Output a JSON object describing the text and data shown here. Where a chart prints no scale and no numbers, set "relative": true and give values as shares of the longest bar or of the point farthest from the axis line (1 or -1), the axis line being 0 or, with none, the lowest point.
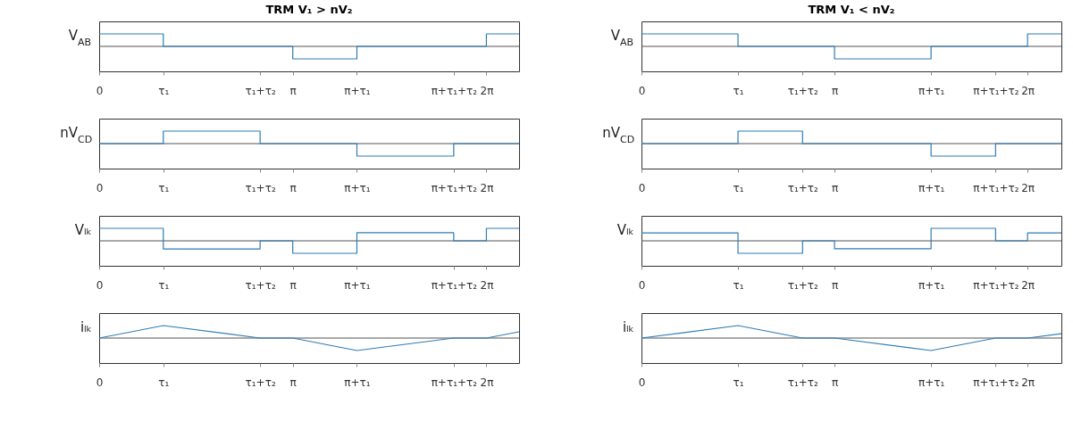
{
  "chart_data": [
    {
      "type": "step",
      "title": "TRM   V₁ > nV₂",
      "ylabel": "V$_{AB}$",
      "relative": true,
      "color": "#2f7db5",
      "grid": false,
      "xlim": [
        0,
        6.81
      ],
      "xticks": [
        0,
        {
          "value": 1.04,
          "label": "τ₁"
        },
        {
          "value": 2.61,
          "label": "τ₁+τ₂"
        },
        {
          "value": 3.14,
          "label": "π"
        },
        {
          "value": 4.18,
          "label": "π+τ₁"
        },
        {
          "value": 5.75,
          "label": "π+τ₁+τ₂"
        },
        {
          "value": 6.28,
          "label": "2π"
        }
      ],
      "x": [
        0,
        1.04,
        2.61,
        3.14,
        4.18,
        5.75,
        6.28,
        6.81
      ],
      "values": [
        1,
        0,
        0,
        -1,
        0,
        0,
        1,
        1
      ]
    },
    {
      "type": "step",
      "title": "TRM   V₁ < nV₂",
      "ylabel": "V$_{AB}$",
      "relative": true,
      "color": "#2f7db5",
      "grid": false,
      "xlim": [
        0,
        6.83
      ],
      "xticks": [
        0,
        {
          "value": 1.57,
          "label": "τ₁"
        },
        {
          "value": 2.62,
          "label": "τ₁+τ₂"
        },
        {
          "value": 3.14,
          "label": "π"
        },
        {
          "value": 4.71,
          "label": "π+τ₁"
        },
        {
          "value": 5.76,
          "label": "π+τ₁+τ₂"
        },
        {
          "value": 6.28,
          "label": "2π"
        }
      ],
      "x": [
        0,
        1.57,
        2.62,
        3.14,
        4.71,
        5.76,
        6.28,
        6.83
      ],
      "values": [
        1,
        0,
        0,
        -1,
        0,
        0,
        1,
        1
      ]
    },
    {
      "type": "step",
      "ylabel": "nV$_{CD}$",
      "relative": true,
      "color": "#2f7db5",
      "grid": false,
      "xlim": [
        0,
        6.81
      ],
      "xticks": [
        0,
        {
          "value": 1.04,
          "label": "τ₁"
        },
        {
          "value": 2.61,
          "label": "τ₁+τ₂"
        },
        {
          "value": 3.14,
          "label": "π"
        },
        {
          "value": 4.18,
          "label": "π+τ₁"
        },
        {
          "value": 5.75,
          "label": "π+τ₁+τ₂"
        },
        {
          "value": 6.28,
          "label": "2π"
        }
      ],
      "x": [
        0,
        1.04,
        2.61,
        3.14,
        4.18,
        5.75,
        6.28,
        6.81
      ],
      "values": [
        0,
        1,
        0,
        0,
        -1,
        0,
        0,
        0
      ]
    },
    {
      "type": "step",
      "ylabel": "nV$_{CD}$",
      "relative": true,
      "color": "#2f7db5",
      "grid": false,
      "xlim": [
        0,
        6.83
      ],
      "xticks": [
        0,
        {
          "value": 1.57,
          "label": "τ₁"
        },
        {
          "value": 2.62,
          "label": "τ₁+τ₂"
        },
        {
          "value": 3.14,
          "label": "π"
        },
        {
          "value": 4.71,
          "label": "π+τ₁"
        },
        {
          "value": 5.76,
          "label": "π+τ₁+τ₂"
        },
        {
          "value": 6.28,
          "label": "2π"
        }
      ],
      "x": [
        0,
        1.57,
        2.62,
        3.14,
        4.71,
        5.76,
        6.28,
        6.83
      ],
      "values": [
        0,
        1,
        0,
        0,
        -1,
        0,
        0,
        0
      ]
    },
    {
      "type": "step",
      "ylabel": "Vₗₖ",
      "relative": true,
      "color": "#2f7db5",
      "grid": false,
      "xlim": [
        0,
        6.81
      ],
      "xticks": [
        0,
        {
          "value": 1.04,
          "label": "τ₁"
        },
        {
          "value": 2.61,
          "label": "τ₁+τ₂"
        },
        {
          "value": 3.14,
          "label": "π"
        },
        {
          "value": 4.18,
          "label": "π+τ₁"
        },
        {
          "value": 5.75,
          "label": "π+τ₁+τ₂"
        },
        {
          "value": 6.28,
          "label": "2π"
        }
      ],
      "x": [
        0,
        1.04,
        2.61,
        3.14,
        4.18,
        5.75,
        6.28,
        6.81
      ],
      "values": [
        1,
        -0.65,
        0,
        -1,
        0.65,
        0,
        1,
        1
      ]
    },
    {
      "type": "step",
      "ylabel": "Vₗₖ",
      "relative": true,
      "color": "#2f7db5",
      "grid": false,
      "xlim": [
        0,
        6.83
      ],
      "xticks": [
        0,
        {
          "value": 1.57,
          "label": "τ₁"
        },
        {
          "value": 2.62,
          "label": "τ₁+τ₂"
        },
        {
          "value": 3.14,
          "label": "π"
        },
        {
          "value": 4.71,
          "label": "π+τ₁"
        },
        {
          "value": 5.76,
          "label": "π+τ₁+τ₂"
        },
        {
          "value": 6.28,
          "label": "2π"
        }
      ],
      "x": [
        0,
        1.57,
        2.62,
        3.14,
        4.71,
        5.76,
        6.28,
        6.83
      ],
      "values": [
        0.64,
        -1,
        0,
        -0.64,
        1,
        0,
        0.64,
        0.64
      ]
    },
    {
      "type": "line",
      "ylabel": "iₗₖ",
      "relative": true,
      "color": "#2f7db5",
      "grid": false,
      "xlim": [
        0,
        6.81
      ],
      "xticks": [
        0,
        {
          "value": 1.04,
          "label": "τ₁"
        },
        {
          "value": 2.61,
          "label": "τ₁+τ₂"
        },
        {
          "value": 3.14,
          "label": "π"
        },
        {
          "value": 4.18,
          "label": "π+τ₁"
        },
        {
          "value": 5.75,
          "label": "π+τ₁+τ₂"
        },
        {
          "value": 6.28,
          "label": "2π"
        }
      ],
      "x": [
        0,
        1.04,
        2.61,
        3.14,
        4.18,
        5.75,
        6.28,
        6.81
      ],
      "values": [
        0,
        1,
        0,
        0,
        -1,
        0,
        0,
        0.5
      ]
    },
    {
      "type": "line",
      "ylabel": "iₗₖ",
      "relative": true,
      "color": "#2f7db5",
      "grid": false,
      "xlim": [
        0,
        6.83
      ],
      "xticks": [
        0,
        {
          "value": 1.57,
          "label": "τ₁"
        },
        {
          "value": 2.62,
          "label": "τ₁+τ₂"
        },
        {
          "value": 3.14,
          "label": "π"
        },
        {
          "value": 4.71,
          "label": "π+τ₁"
        },
        {
          "value": 5.76,
          "label": "π+τ₁+τ₂"
        },
        {
          "value": 6.28,
          "label": "2π"
        }
      ],
      "x": [
        0,
        1.57,
        2.62,
        3.14,
        4.71,
        5.76,
        6.28,
        6.83
      ],
      "values": [
        0,
        1,
        0,
        0,
        -1,
        0,
        0,
        0.35
      ]
    }
  ]
}
